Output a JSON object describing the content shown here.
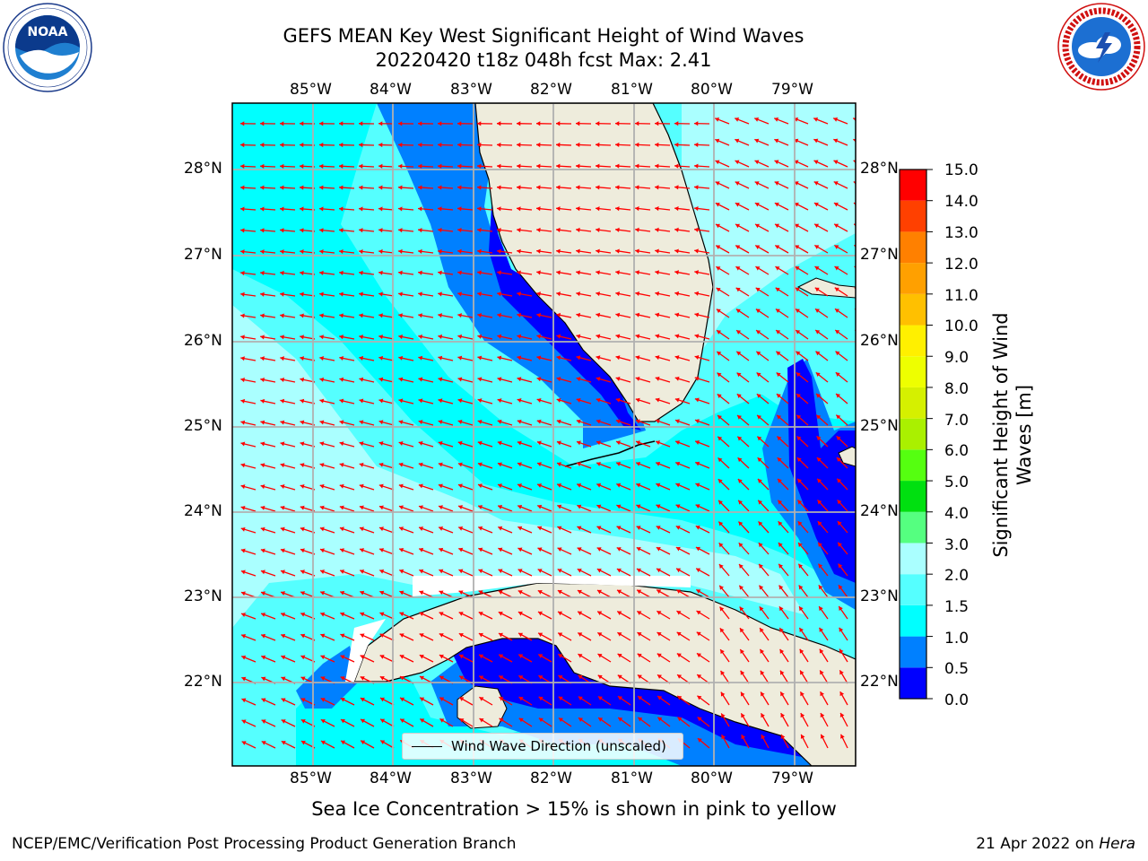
{
  "header": {
    "title_line1": "GEFS MEAN Key West Significant Height of Wind Waves",
    "title_line2": "20220420 t18z 048h fcst   Max: 2.41"
  },
  "logos": {
    "left": {
      "text": "NOAA",
      "ring_text": "NATIONAL OCEANIC AND ATMOSPHERIC ADMINISTRATION · U.S. DEPARTMENT OF COMMERCE"
    },
    "right": {
      "ring_text": "NATIONAL WEATHER SERVICE"
    }
  },
  "map": {
    "lon_labels": [
      "85°W",
      "84°W",
      "83°W",
      "82°W",
      "81°W",
      "80°W",
      "79°W"
    ],
    "lat_labels": [
      "28°N",
      "27°N",
      "26°N",
      "25°N",
      "24°N",
      "23°N",
      "22°N"
    ],
    "land_color": "#eeecdc",
    "arrow_color": "#ff0000",
    "grid_color": "#b0b0b0"
  },
  "colorbar": {
    "label": "Significant Height of Wind Waves [m]",
    "ticks": [
      "15.0",
      "14.0",
      "13.0",
      "12.0",
      "11.0",
      "10.0",
      "9.0",
      "8.0",
      "7.0",
      "6.0",
      "5.0",
      "4.0",
      "3.0",
      "2.0",
      "1.5",
      "1.0",
      "0.5",
      "0.0"
    ],
    "bins": [
      {
        "from": 0.0,
        "to": 0.5,
        "color": "#0000ff"
      },
      {
        "from": 0.5,
        "to": 1.0,
        "color": "#0080ff"
      },
      {
        "from": 1.0,
        "to": 1.5,
        "color": "#00ffff"
      },
      {
        "from": 1.5,
        "to": 2.0,
        "color": "#55ffff"
      },
      {
        "from": 2.0,
        "to": 3.0,
        "color": "#aaffff"
      },
      {
        "from": 3.0,
        "to": 4.0,
        "color": "#55ff80"
      },
      {
        "from": 4.0,
        "to": 5.0,
        "color": "#00e010"
      },
      {
        "from": 5.0,
        "to": 6.0,
        "color": "#55ff10"
      },
      {
        "from": 6.0,
        "to": 7.0,
        "color": "#aaf000"
      },
      {
        "from": 7.0,
        "to": 8.0,
        "color": "#d5f000"
      },
      {
        "from": 8.0,
        "to": 9.0,
        "color": "#eeff00"
      },
      {
        "from": 9.0,
        "to": 10.0,
        "color": "#fff000"
      },
      {
        "from": 10.0,
        "to": 11.0,
        "color": "#ffc000"
      },
      {
        "from": 11.0,
        "to": 12.0,
        "color": "#ffa000"
      },
      {
        "from": 12.0,
        "to": 13.0,
        "color": "#ff8000"
      },
      {
        "from": 13.0,
        "to": 14.0,
        "color": "#ff4000"
      },
      {
        "from": 14.0,
        "to": 15.0,
        "color": "#ff0000"
      }
    ]
  },
  "legend": {
    "label": "Wind Wave Direction (unscaled)"
  },
  "subtitle": "Sea Ice Concentration > 15% is shown in pink to yellow",
  "footer": {
    "left": "NCEP/EMC/Verification Post Processing Product Generation Branch",
    "right_prefix": "21 Apr 2022 on ",
    "right_machine": "Hera"
  }
}
